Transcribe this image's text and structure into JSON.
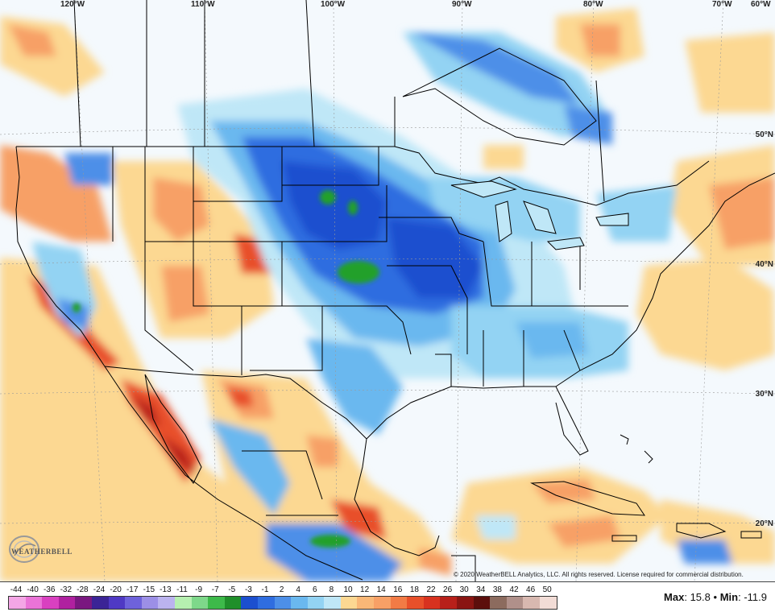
{
  "map": {
    "longitude_labels": [
      "120°W",
      "110°W",
      "100°W",
      "90°W",
      "80°W",
      "70°W",
      "60°W"
    ],
    "latitude_labels": [
      "50°N",
      "40°N",
      "30°N",
      "20°N"
    ],
    "copyright": "© 2020 WeatherBELL Analytics, LLC. All rights reserved. License required for commercial distribution.",
    "logo_text": "WEATHERBELL",
    "colors": {
      "ocean_neutral": "#f4f9fd",
      "warm_light": "#fcd892",
      "warm_mid": "#f7a066",
      "warm_strong": "#e8502a",
      "warm_extreme": "#b8201a",
      "cool_light": "#bfe7f7",
      "cool_mid": "#6ab8ef",
      "cool_strong": "#2f6de0",
      "cool_extreme": "#1c4fcf",
      "green": "#22a02a",
      "borders": "#000000"
    }
  },
  "legend": {
    "labels": [
      "-44",
      "-40",
      "-36",
      "-32",
      "-28",
      "-24",
      "-20",
      "-17",
      "-15",
      "-13",
      "-11",
      "-9",
      "-7",
      "-5",
      "-3",
      "-1",
      "2",
      "4",
      "6",
      "8",
      "10",
      "12",
      "14",
      "16",
      "18",
      "22",
      "26",
      "30",
      "34",
      "38",
      "42",
      "46",
      "50"
    ],
    "colors": [
      "#f4a6e6",
      "#ea73d7",
      "#d940c0",
      "#b021a0",
      "#7a1880",
      "#3b2496",
      "#4f39c4",
      "#6e62db",
      "#9c8fe6",
      "#bbb3ef",
      "#b6f0b0",
      "#7ed88a",
      "#3dba4a",
      "#1f8f2a",
      "#1c4fcf",
      "#2f6de0",
      "#4d8fe8",
      "#6ab8ef",
      "#93d3f3",
      "#bfe7f7",
      "#fcd892",
      "#f9b777",
      "#f7a066",
      "#f27b45",
      "#e8502a",
      "#d8321f",
      "#b8201a",
      "#8a1512",
      "#5c0e0c",
      "#8c6b5e",
      "#b0908a",
      "#d8b8b0",
      "#f2dcd6"
    ]
  },
  "stats": {
    "max_label": "Max",
    "max_value": "15.8",
    "sep": "•",
    "min_label": "Min",
    "min_value": "-11.9"
  }
}
